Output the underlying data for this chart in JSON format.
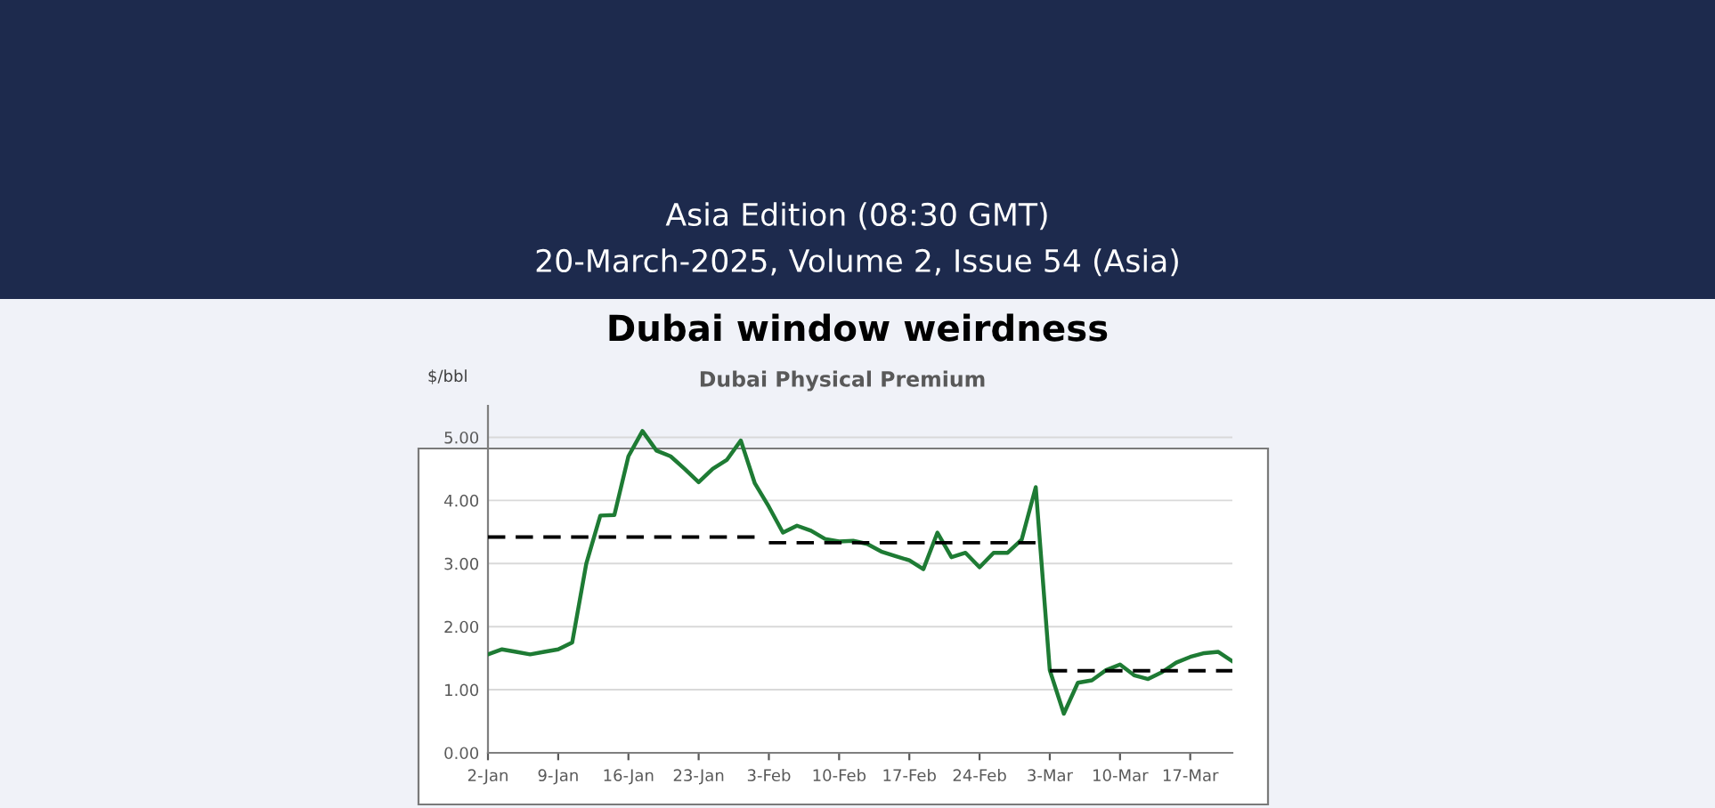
{
  "chart_data": {
    "type": "line",
    "title": "Dubai window weirdness",
    "subtitle": "Dubai Physical Premium",
    "ylabel": "$/bbl",
    "annotations": [
      "Asia Edition (08:30 GMT)",
      "20-March-2025, Volume 2, Issue 54 (Asia)"
    ],
    "categories": [
      "2-Jan",
      null,
      null,
      null,
      null,
      "9-Jan",
      null,
      null,
      null,
      null,
      "16-Jan",
      null,
      null,
      null,
      null,
      "23-Jan",
      null,
      null,
      null,
      null,
      "3-Feb",
      null,
      null,
      null,
      null,
      "10-Feb",
      null,
      null,
      null,
      null,
      "17-Feb",
      null,
      null,
      null,
      null,
      "24-Feb",
      null,
      null,
      null,
      null,
      "3-Mar",
      null,
      null,
      null,
      null,
      "10-Mar",
      null,
      null,
      null,
      null,
      "17-Mar",
      null,
      null,
      null
    ],
    "series": [
      {
        "color": "#1e7b34",
        "line_style": "solid",
        "values": [
          1.56,
          1.64,
          1.6,
          1.56,
          1.6,
          1.64,
          1.75,
          3.0,
          3.76,
          3.77,
          4.7,
          5.1,
          4.79,
          4.7,
          4.5,
          4.29,
          4.5,
          4.64,
          4.95,
          4.27,
          3.9,
          3.49,
          3.6,
          3.52,
          3.39,
          3.35,
          3.36,
          3.31,
          3.19,
          3.12,
          3.05,
          2.91,
          3.49,
          3.1,
          3.17,
          2.94,
          3.17,
          3.17,
          3.38,
          4.21,
          1.31,
          0.62,
          1.11,
          1.15,
          1.31,
          1.4,
          1.23,
          1.17,
          1.28,
          1.43,
          1.52,
          1.58,
          1.6,
          1.45
        ]
      },
      {
        "color": "#000000",
        "line_style": "dashed",
        "values": [
          3.42,
          3.42,
          3.42,
          3.42,
          3.42,
          3.42,
          3.42,
          3.42,
          3.42,
          3.42,
          3.42,
          3.42,
          3.42,
          3.42,
          3.42,
          3.42,
          3.42,
          3.42,
          3.42,
          3.42,
          null,
          null,
          null,
          null,
          null,
          null,
          null,
          null,
          null,
          null,
          null,
          null,
          null,
          null,
          null,
          null,
          null,
          null,
          null,
          null,
          null,
          null,
          null,
          null,
          null,
          null,
          null,
          null,
          null,
          null,
          null,
          null,
          null,
          null
        ]
      },
      {
        "color": "#000000",
        "line_style": "dashed",
        "values": [
          null,
          null,
          null,
          null,
          null,
          null,
          null,
          null,
          null,
          null,
          null,
          null,
          null,
          null,
          null,
          null,
          null,
          null,
          null,
          null,
          3.33,
          3.33,
          3.33,
          3.33,
          3.33,
          3.33,
          3.33,
          3.33,
          3.33,
          3.33,
          3.33,
          3.33,
          3.33,
          3.33,
          3.33,
          3.33,
          3.33,
          3.33,
          3.33,
          3.33,
          null,
          null,
          null,
          null,
          null,
          null,
          null,
          null,
          null,
          null,
          null,
          null,
          null,
          null
        ]
      },
      {
        "color": "#000000",
        "line_style": "dashed",
        "values": [
          null,
          null,
          null,
          null,
          null,
          null,
          null,
          null,
          null,
          null,
          null,
          null,
          null,
          null,
          null,
          null,
          null,
          null,
          null,
          null,
          null,
          null,
          null,
          null,
          null,
          null,
          null,
          null,
          null,
          null,
          null,
          null,
          null,
          null,
          null,
          null,
          null,
          null,
          null,
          null,
          1.3,
          1.3,
          1.3,
          1.3,
          1.3,
          1.3,
          1.3,
          1.3,
          1.3,
          1.3,
          1.3,
          1.3,
          1.3,
          1.3
        ]
      }
    ],
    "ylim": [
      0,
      5.5
    ],
    "yticks": [
      {
        "value": 0,
        "label": "0.00"
      },
      {
        "value": 1,
        "label": "1.00"
      },
      {
        "value": 2,
        "label": "2.00"
      },
      {
        "value": 3,
        "label": "3.00"
      },
      {
        "value": 4,
        "label": "4.00"
      },
      {
        "value": 5,
        "label": "5.00"
      }
    ],
    "grid": "y",
    "legend": false,
    "marker": "none"
  }
}
